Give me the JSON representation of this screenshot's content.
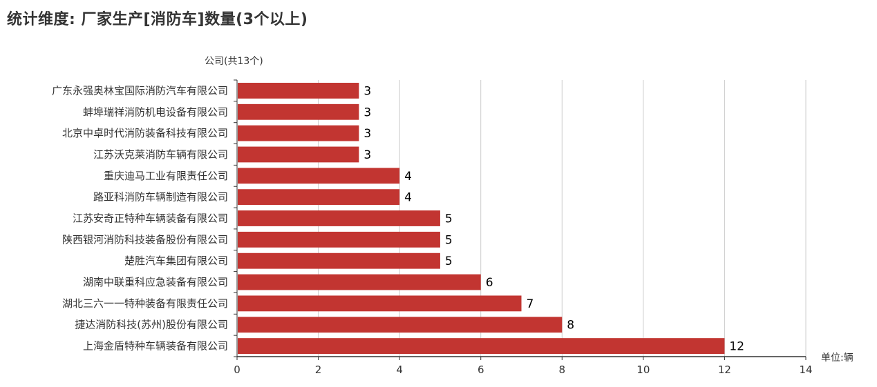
{
  "title": "统计维度: 厂家生产[消防车]数量(3个以上)",
  "y_axis_label": "公司(共13个)",
  "x_axis_unit": "单位:辆",
  "colors": {
    "bar": "#c23531",
    "grid": "#cccccc",
    "axis": "#333333"
  },
  "chart_data": {
    "type": "bar",
    "orientation": "horizontal",
    "title": "统计维度: 厂家生产[消防车]数量(3个以上)",
    "xlabel": "单位:辆",
    "ylabel": "公司(共13个)",
    "xlim": [
      0,
      14
    ],
    "x_ticks": [
      0,
      2,
      4,
      6,
      8,
      10,
      12,
      14
    ],
    "grid": true,
    "legend": null,
    "categories": [
      "广东永强奥林宝国际消防汽车有限公司",
      "蚌埠瑞祥消防机电设备有限公司",
      "北京中卓时代消防装备科技有限公司",
      "江苏沃克莱消防车辆有限公司",
      "重庆迪马工业有限责任公司",
      "路亚科消防车辆制造有限公司",
      "江苏安奇正特种车辆装备有限公司",
      "陕西银河消防科技装备股份有限公司",
      "楚胜汽车集团有限公司",
      "湖南中联重科应急装备有限公司",
      "湖北三六一一特种装备有限责任公司",
      "捷达消防科技(苏州)股份有限公司",
      "上海金盾特种车辆装备有限公司"
    ],
    "values": [
      3,
      3,
      3,
      3,
      4,
      4,
      5,
      5,
      5,
      6,
      7,
      8,
      12
    ]
  }
}
